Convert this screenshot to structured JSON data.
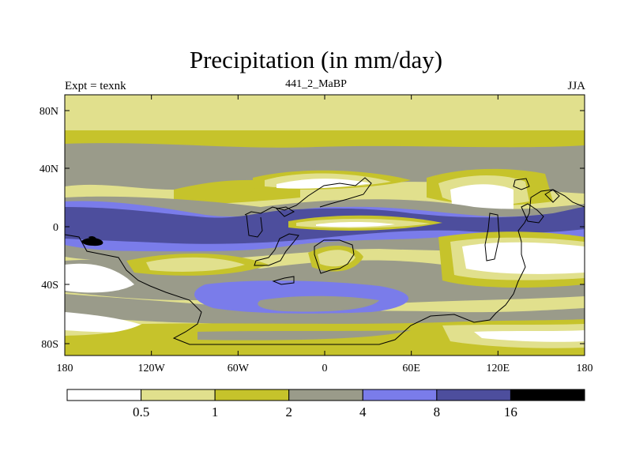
{
  "title": "Precipitation (in mm/day)",
  "left_label": "Expt = texnk",
  "center_label": "441_2_MaBP",
  "right_label": "JJA",
  "y_ticks": [
    "80N",
    "40N",
    "0",
    "40S",
    "80S"
  ],
  "x_ticks": [
    "180",
    "120W",
    "60W",
    "0",
    "60E",
    "120E",
    "180"
  ],
  "colorbar": {
    "colors": [
      "#ffffff",
      "#e1e08d",
      "#c6c32b",
      "#9a9b8a",
      "#7a7cea",
      "#4d4e9d",
      "#000000"
    ],
    "labels": [
      "0.5",
      "1",
      "2",
      "4",
      "8",
      "16"
    ]
  },
  "colors": {
    "land_outline": "#000000",
    "frame": "#000000"
  }
}
